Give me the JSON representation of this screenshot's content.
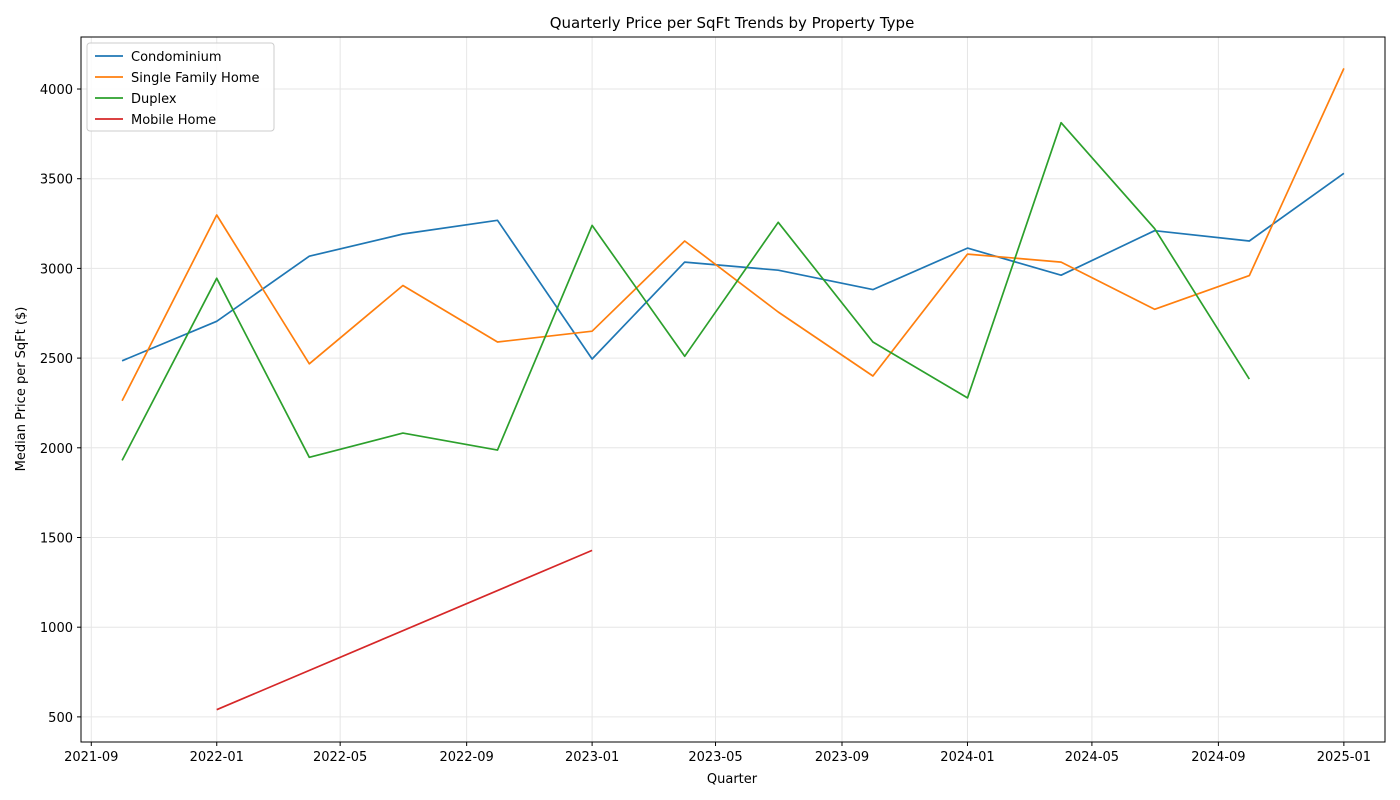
{
  "chart_data": {
    "type": "line",
    "title": "Quarterly Price per SqFt Trends by Property Type",
    "xlabel": "Quarter",
    "ylabel": "Median Price per SqFt ($)",
    "x_axis": "date",
    "xlim": [
      "2021-08-22",
      "2025-02-10"
    ],
    "ylim": [
      360,
      4290
    ],
    "x_ticks": [
      "2021-09-01",
      "2022-01-01",
      "2022-05-01",
      "2022-09-01",
      "2023-01-01",
      "2023-05-01",
      "2023-09-01",
      "2024-01-01",
      "2024-05-01",
      "2024-09-01",
      "2025-01-01"
    ],
    "x_tick_labels": [
      "2021-09",
      "2022-01",
      "2022-05",
      "2022-09",
      "2023-01",
      "2023-05",
      "2023-09",
      "2024-01",
      "2024-05",
      "2024-09",
      "2025-01"
    ],
    "y_ticks": [
      500,
      1000,
      1500,
      2000,
      2500,
      3000,
      3500,
      4000
    ],
    "y_tick_labels": [
      "500",
      "1000",
      "1500",
      "2000",
      "2500",
      "3000",
      "3500",
      "4000"
    ],
    "grid": true,
    "legend": "upper-left",
    "series": [
      {
        "name": "Condominium",
        "color": "#1f77b4",
        "x": [
          "2021-10-01",
          "2022-01-01",
          "2022-04-01",
          "2022-07-01",
          "2022-10-01",
          "2023-01-01",
          "2023-04-01",
          "2023-07-01",
          "2023-10-01",
          "2024-01-01",
          "2024-04-01",
          "2024-07-01",
          "2024-10-01",
          "2025-01-01"
        ],
        "y": [
          2485,
          2705,
          3068,
          3192,
          3268,
          2495,
          3035,
          2990,
          2882,
          3113,
          2962,
          3210,
          3153,
          3530
        ]
      },
      {
        "name": "Single Family Home",
        "color": "#ff7f0e",
        "x": [
          "2021-10-01",
          "2022-01-01",
          "2022-04-01",
          "2022-07-01",
          "2022-10-01",
          "2023-01-01",
          "2023-04-01",
          "2023-07-01",
          "2023-10-01",
          "2024-01-01",
          "2024-04-01",
          "2024-07-01",
          "2024-10-01",
          "2025-01-01"
        ],
        "y": [
          2262,
          3298,
          2468,
          2905,
          2590,
          2650,
          3153,
          2757,
          2400,
          3080,
          3035,
          2772,
          2960,
          4115
        ]
      },
      {
        "name": "Duplex",
        "color": "#2ca02c",
        "x": [
          "2021-10-01",
          "2022-01-01",
          "2022-04-01",
          "2022-07-01",
          "2022-10-01",
          "2023-01-01",
          "2023-04-01",
          "2023-07-01",
          "2023-10-01",
          "2024-01-01",
          "2024-04-01",
          "2024-07-01",
          "2024-10-01"
        ],
        "y": [
          1930,
          2945,
          1947,
          2082,
          1987,
          3240,
          2510,
          3257,
          2590,
          2278,
          3812,
          3222,
          2383
        ]
      },
      {
        "name": "Mobile Home",
        "color": "#d62728",
        "x": [
          "2022-01-01",
          "2023-01-01"
        ],
        "y": [
          540,
          1428
        ]
      }
    ]
  }
}
